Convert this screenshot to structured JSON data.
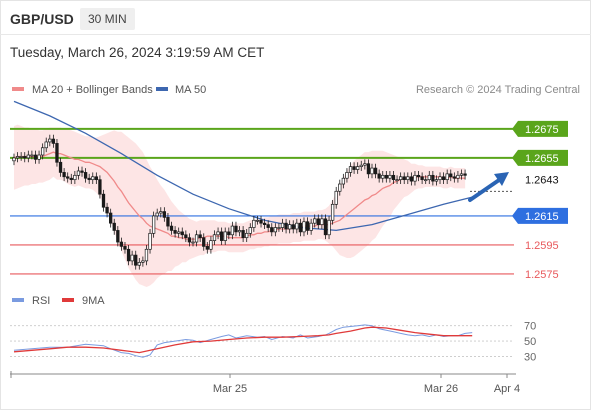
{
  "header": {
    "symbol": "GBP/USD",
    "timeframe": "30 MIN",
    "timestamp": "Tuesday, March 26, 2024 3:19:59 AM CET"
  },
  "colors": {
    "ma20": "#f08a8a",
    "band": "#fde0e0",
    "ma50": "#3d67b0",
    "resistance": "#5aa51b",
    "support_blue": "#2e6fe0",
    "support_red": "#e8595c",
    "arrow": "#2a64b4",
    "rsi": "#7a9be0",
    "rsi_ma": "#e03a3a"
  },
  "legend": [
    {
      "label": "MA 20 + Bollinger Bands",
      "color": "#f08a8a"
    },
    {
      "label": "MA 50",
      "color": "#3d67b0"
    }
  ],
  "attribution": "Research © 2024 Trading Central",
  "rsi_legend": [
    {
      "label": "RSI",
      "color": "#7a9be0"
    },
    {
      "label": "9MA",
      "color": "#e03a3a"
    }
  ],
  "chart_data": {
    "type": "candlestick",
    "x_labels": [
      "Mar 25",
      "Mar 26",
      "Apr 4"
    ],
    "y_range": [
      1.2566,
      1.2697
    ],
    "current_price": "1.2643",
    "levels": [
      {
        "label": "1.2675",
        "value": 1.2675,
        "kind": "resistance"
      },
      {
        "label": "1.2655",
        "value": 1.2655,
        "kind": "resistance"
      },
      {
        "label": "1.2615",
        "value": 1.2615,
        "kind": "support-major"
      },
      {
        "label": "1.2595",
        "value": 1.2595,
        "kind": "support"
      },
      {
        "label": "1.2575",
        "value": 1.2575,
        "kind": "support"
      }
    ],
    "closes": [
      1.2655,
      1.2656,
      1.2656,
      1.2655,
      1.2657,
      1.2657,
      1.2654,
      1.2657,
      1.2662,
      1.2666,
      1.2668,
      1.2665,
      1.2652,
      1.2645,
      1.2642,
      1.2641,
      1.264,
      1.2643,
      1.2646,
      1.2645,
      1.2641,
      1.264,
      1.2642,
      1.264,
      1.263,
      1.2621,
      1.2617,
      1.261,
      1.2605,
      1.2597,
      1.2594,
      1.2592,
      1.2584,
      1.2588,
      1.2581,
      1.2583,
      1.2584,
      1.2592,
      1.2603,
      1.2615,
      1.2617,
      1.2618,
      1.2614,
      1.2608,
      1.2605,
      1.2603,
      1.2604,
      1.2602,
      1.26,
      1.2597,
      1.2597,
      1.2602,
      1.26,
      1.2594,
      1.2592,
      1.2598,
      1.2602,
      1.2604,
      1.2598,
      1.2604,
      1.2602,
      1.2608,
      1.2604,
      1.2605,
      1.26,
      1.2603,
      1.2607,
      1.2612,
      1.2612,
      1.261,
      1.2609,
      1.2607,
      1.2604,
      1.2607,
      1.2607,
      1.261,
      1.2606,
      1.2609,
      1.2606,
      1.261,
      1.2604,
      1.2611,
      1.2605,
      1.261,
      1.2613,
      1.2609,
      1.2613,
      1.2602,
      1.2612,
      1.2623,
      1.2632,
      1.2637,
      1.2641,
      1.2645,
      1.2649,
      1.2647,
      1.2649,
      1.265,
      1.2651,
      1.2644,
      1.2648,
      1.2644,
      1.2641,
      1.2643,
      1.2641,
      1.2643,
      1.264,
      1.264,
      1.2642,
      1.264,
      1.2642,
      1.2639,
      1.2643,
      1.2642,
      1.264,
      1.264,
      1.2643,
      1.2639,
      1.264,
      1.2642,
      1.264,
      1.2644,
      1.2642,
      1.2641,
      1.2643,
      1.2644,
      1.2643
    ],
    "ma20": [
      1.2655,
      1.2656,
      1.2656,
      1.2656,
      1.2656,
      1.2656,
      1.2656,
      1.2656,
      1.2656,
      1.2657,
      1.2658,
      1.2659,
      1.2658,
      1.2658,
      1.2657,
      1.2656,
      1.2655,
      1.2654,
      1.2654,
      1.2653,
      1.2652,
      1.2652,
      1.2651,
      1.265,
      1.2649,
      1.2647,
      1.2645,
      1.2642,
      1.2639,
      1.2635,
      1.2632,
      1.2628,
      1.2624,
      1.2621,
      1.2618,
      1.2615,
      1.2613,
      1.261,
      1.2608,
      1.2607,
      1.2606,
      1.2605,
      1.2604,
      1.2603,
      1.2601,
      1.2601,
      1.26,
      1.26,
      1.2599,
      1.2599,
      1.2599,
      1.2599,
      1.26,
      1.26,
      1.2601,
      1.2601,
      1.2601,
      1.2601,
      1.2601,
      1.2601,
      1.26,
      1.26,
      1.26,
      1.26,
      1.26,
      1.2601,
      1.2602,
      1.2602,
      1.2603,
      1.2603,
      1.2604,
      1.2604,
      1.2605,
      1.2605,
      1.2606,
      1.2606,
      1.2606,
      1.2606,
      1.2607,
      1.2607,
      1.2607,
      1.2608,
      1.2608,
      1.2608,
      1.2608,
      1.2609,
      1.2609,
      1.2609,
      1.2609,
      1.261,
      1.2611,
      1.2612,
      1.2614,
      1.2616,
      1.2618,
      1.262,
      1.2622,
      1.2624,
      1.2626,
      1.2627,
      1.2629,
      1.263,
      1.2632,
      1.2634,
      1.2635,
      1.2636,
      1.2638,
      1.2639,
      1.264,
      1.2641,
      1.2641,
      1.2641,
      1.2642,
      1.2642,
      1.2642,
      1.2642,
      1.2642,
      1.2642,
      1.2642,
      1.2642,
      1.2641,
      1.2641,
      1.2642,
      1.2641,
      1.2641,
      1.2641,
      1.2641
    ],
    "bb_width": [
      0.0022,
      0.0022,
      0.0021,
      0.002,
      0.002,
      0.0019,
      0.0019,
      0.0018,
      0.0018,
      0.0018,
      0.0018,
      0.0017,
      0.0018,
      0.0018,
      0.0018,
      0.0019,
      0.0019,
      0.0019,
      0.0018,
      0.0018,
      0.0018,
      0.0018,
      0.0018,
      0.0019,
      0.0021,
      0.0024,
      0.0027,
      0.0031,
      0.0035,
      0.0038,
      0.0041,
      0.0043,
      0.0045,
      0.0046,
      0.0047,
      0.0047,
      0.0046,
      0.0044,
      0.0041,
      0.0038,
      0.0034,
      0.0031,
      0.0029,
      0.0026,
      0.0024,
      0.0021,
      0.0019,
      0.0017,
      0.0016,
      0.0014,
      0.0013,
      0.0012,
      0.0012,
      0.0012,
      0.0011,
      0.0011,
      0.0011,
      0.001,
      0.001,
      0.001,
      0.001,
      0.001,
      0.001,
      0.001,
      0.001,
      0.001,
      0.001,
      0.001,
      0.001,
      0.001,
      0.001,
      0.001,
      0.001,
      0.001,
      0.001,
      0.001,
      0.001,
      0.001,
      0.001,
      0.001,
      0.001,
      0.001,
      0.001,
      0.001,
      0.001,
      0.001,
      0.001,
      0.0011,
      0.0013,
      0.0016,
      0.002,
      0.0024,
      0.0027,
      0.003,
      0.0032,
      0.0033,
      0.0033,
      0.0033,
      0.0033,
      0.0032,
      0.0031,
      0.003,
      0.0028,
      0.0026,
      0.0024,
      0.0022,
      0.0019,
      0.0017,
      0.0015,
      0.0013,
      0.0012,
      0.001,
      0.0009,
      0.0008,
      0.0008,
      0.0007,
      0.0007,
      0.0007,
      0.0007,
      0.0007,
      0.0007,
      0.0007,
      0.0007,
      0.0007,
      0.0007,
      0.0007,
      0.0007
    ],
    "ma50_points": [
      [
        0,
        1.2694
      ],
      [
        10,
        1.2684
      ],
      [
        20,
        1.2672
      ],
      [
        30,
        1.2658
      ],
      [
        40,
        1.2643
      ],
      [
        50,
        1.263
      ],
      [
        60,
        1.262
      ],
      [
        70,
        1.2612
      ],
      [
        80,
        1.2607
      ],
      [
        90,
        1.2605
      ],
      [
        100,
        1.2609
      ],
      [
        110,
        1.2616
      ],
      [
        120,
        1.2623
      ],
      [
        128,
        1.2628
      ]
    ],
    "rsi_axis_labels": [
      "70",
      "50",
      "30"
    ],
    "rsi_points": [
      [
        0,
        38
      ],
      [
        5,
        40
      ],
      [
        10,
        42
      ],
      [
        15,
        42
      ],
      [
        20,
        46
      ],
      [
        25,
        44
      ],
      [
        27,
        40
      ],
      [
        30,
        35
      ],
      [
        32,
        34
      ],
      [
        34,
        31
      ],
      [
        36,
        29
      ],
      [
        38,
        32
      ],
      [
        40,
        45
      ],
      [
        42,
        48
      ],
      [
        45,
        50
      ],
      [
        48,
        52
      ],
      [
        50,
        51
      ],
      [
        52,
        48
      ],
      [
        55,
        52
      ],
      [
        58,
        56
      ],
      [
        60,
        58
      ],
      [
        62,
        54
      ],
      [
        65,
        57
      ],
      [
        68,
        55
      ],
      [
        70,
        56
      ],
      [
        72,
        52
      ],
      [
        75,
        56
      ],
      [
        78,
        54
      ],
      [
        80,
        58
      ],
      [
        82,
        54
      ],
      [
        85,
        56
      ],
      [
        87,
        58
      ],
      [
        88,
        60
      ],
      [
        90,
        65
      ],
      [
        92,
        68
      ],
      [
        94,
        69
      ],
      [
        96,
        70
      ],
      [
        98,
        71
      ],
      [
        100,
        70
      ],
      [
        102,
        66
      ],
      [
        104,
        64
      ],
      [
        106,
        62
      ],
      [
        108,
        60
      ],
      [
        110,
        58
      ],
      [
        112,
        57
      ],
      [
        114,
        58
      ],
      [
        116,
        56
      ],
      [
        118,
        58
      ],
      [
        120,
        56
      ],
      [
        122,
        57
      ],
      [
        124,
        57
      ],
      [
        126,
        60
      ],
      [
        128,
        61
      ]
    ],
    "rsi_ma_points": [
      [
        0,
        36
      ],
      [
        5,
        38
      ],
      [
        10,
        40
      ],
      [
        15,
        42
      ],
      [
        20,
        42
      ],
      [
        25,
        41
      ],
      [
        30,
        38
      ],
      [
        35,
        35
      ],
      [
        40,
        40
      ],
      [
        45,
        45
      ],
      [
        50,
        49
      ],
      [
        55,
        50
      ],
      [
        60,
        52
      ],
      [
        65,
        54
      ],
      [
        70,
        55
      ],
      [
        75,
        55
      ],
      [
        80,
        56
      ],
      [
        85,
        57
      ],
      [
        88,
        58
      ],
      [
        90,
        60
      ],
      [
        94,
        63
      ],
      [
        98,
        67
      ],
      [
        100,
        68
      ],
      [
        104,
        67
      ],
      [
        108,
        64
      ],
      [
        112,
        61
      ],
      [
        116,
        59
      ],
      [
        120,
        57
      ],
      [
        124,
        57
      ],
      [
        128,
        57
      ]
    ]
  }
}
